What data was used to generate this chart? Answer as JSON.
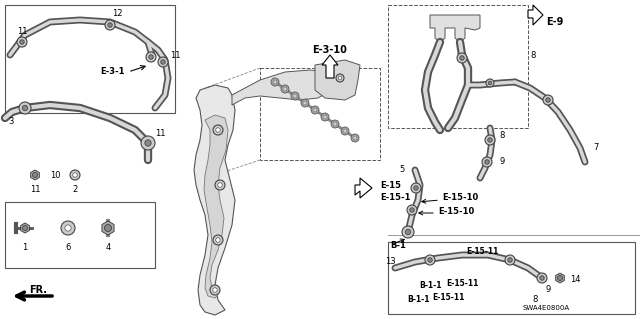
{
  "bg_color": "#ffffff",
  "line_color": "#333333",
  "text_color": "#000000",
  "bold_labels": [
    "E-3-1",
    "E-3-10",
    "E-15",
    "E-15-1",
    "E-15-10",
    "E-15-11",
    "B-1",
    "B-1-1",
    "E-9",
    "SWA4E0800A",
    "FR."
  ],
  "normal_labels": [
    "1",
    "2",
    "3",
    "4",
    "5",
    "6",
    "7",
    "8",
    "9",
    "10",
    "11",
    "12",
    "13",
    "14"
  ],
  "tube_color": "#555555",
  "tube_highlight": "#e0e0e0",
  "clamp_color": "#444444",
  "box_color": "#333333",
  "dashed_box_color": "#555555"
}
